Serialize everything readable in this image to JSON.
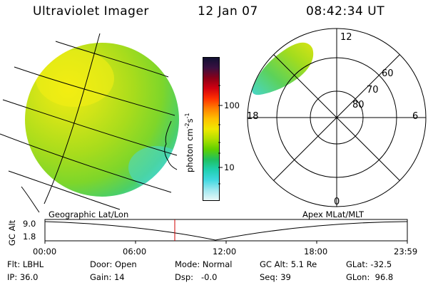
{
  "header": {
    "instrument": "Ultraviolet Imager",
    "date": "12 Jan 07",
    "time": "08:42:34 UT"
  },
  "colorbar": {
    "unit_label": "photon cm",
    "unit_exp1": "-2",
    "unit_mid": "s",
    "unit_exp2": "-1",
    "ticks": [
      "100",
      "10"
    ],
    "colors": [
      "#111133",
      "#3a1040",
      "#8a0018",
      "#d00010",
      "#ff3000",
      "#ff8000",
      "#ffc000",
      "#f0e800",
      "#b0e000",
      "#60d000",
      "#20c060",
      "#20d0b0",
      "#40d8e0",
      "#a0e8f0",
      "#e8f8f8"
    ]
  },
  "polar": {
    "mlt_labels": {
      "top": "12",
      "left": "18",
      "right": "6",
      "bottom": "0"
    },
    "lat_labels": [
      "60",
      "70",
      "80"
    ]
  },
  "timeline": {
    "left_title": "Geographic Lat/Lon",
    "right_title": "Apex MLat/MLT",
    "y_label": "GC Alt",
    "y_ticks": [
      "9.0",
      "1.8"
    ],
    "x_ticks": [
      "00:00",
      "06:00",
      "12:00",
      "18:00",
      "23:59"
    ],
    "cursor_color": "#d00000"
  },
  "status": {
    "row1": [
      {
        "key": "flt",
        "text": "Flt: LBHL"
      },
      {
        "key": "door",
        "text": "Door: Open"
      },
      {
        "key": "mode",
        "text": "Mode: Normal"
      },
      {
        "key": "gcalt",
        "text": "GC Alt: 5.1 Re"
      },
      {
        "key": "glat",
        "text": "GLat: -32.5"
      }
    ],
    "row2": [
      {
        "key": "ip",
        "text": "IP: 36.0"
      },
      {
        "key": "gain",
        "text": "Gain: 14"
      },
      {
        "key": "dsp",
        "text": "Dsp:   -0.0"
      },
      {
        "key": "seq",
        "text": "Seq: 39"
      },
      {
        "key": "glon",
        "text": "GLon:  96.8"
      }
    ]
  }
}
